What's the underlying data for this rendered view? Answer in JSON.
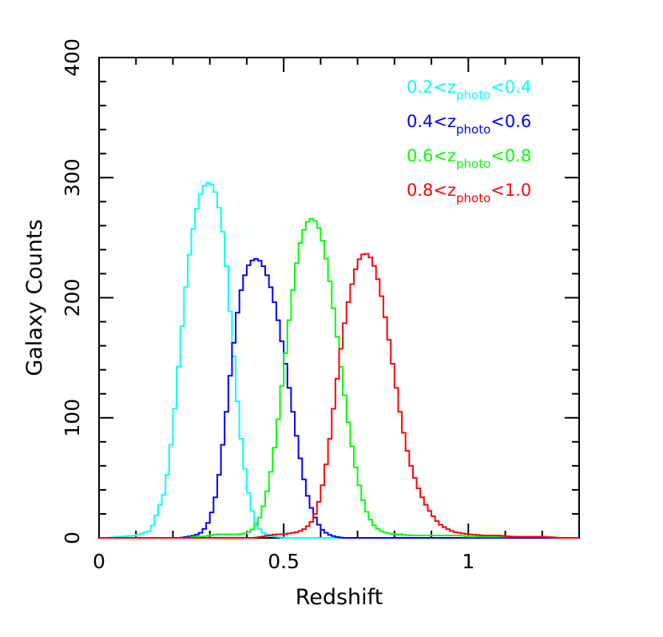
{
  "chart_data": {
    "type": "line",
    "title": "",
    "xlabel": "Redshift",
    "ylabel": "Galaxy Counts",
    "xlim": [
      0,
      1.3
    ],
    "ylim": [
      0,
      400
    ],
    "x_ticks": [
      0,
      0.5,
      1
    ],
    "x_tick_labels": [
      "0",
      "0.5",
      "1"
    ],
    "y_ticks": [
      0,
      100,
      200,
      300,
      400
    ],
    "y_tick_labels": [
      "0",
      "100",
      "200",
      "300",
      "400"
    ],
    "grid": false,
    "legend_position": "top-right",
    "x": [
      0.02,
      0.06,
      0.1,
      0.14,
      0.18,
      0.2,
      0.22,
      0.24,
      0.26,
      0.28,
      0.3,
      0.32,
      0.34,
      0.36,
      0.38,
      0.4,
      0.42,
      0.44,
      0.46,
      0.48,
      0.5,
      0.52,
      0.54,
      0.56,
      0.58,
      0.6,
      0.62,
      0.64,
      0.66,
      0.68,
      0.7,
      0.72,
      0.74,
      0.76,
      0.78,
      0.8,
      0.82,
      0.84,
      0.86,
      0.88,
      0.9,
      0.92,
      0.94,
      0.96,
      0.98,
      1.0,
      1.04,
      1.08,
      1.12,
      1.16,
      1.2,
      1.25,
      1.3
    ],
    "series": [
      {
        "label_parts": [
          "0.2<z",
          "photo",
          "<0.4"
        ],
        "color": "#00ffff",
        "values": [
          0,
          1,
          2,
          6,
          40,
          90,
          160,
          225,
          268,
          292,
          297,
          285,
          245,
          170,
          95,
          45,
          15,
          5,
          2,
          1,
          0,
          0,
          0,
          0,
          0,
          0,
          0,
          0,
          0,
          0,
          0,
          0,
          0,
          0,
          0,
          0,
          0,
          0,
          0,
          0,
          0,
          0,
          0,
          0,
          0,
          0,
          0,
          0,
          0,
          0,
          0,
          0,
          0
        ]
      },
      {
        "label_parts": [
          "0.4<z",
          "photo",
          "<0.6"
        ],
        "color": "#0000ff",
        "values": [
          0,
          0,
          0,
          0,
          0,
          0,
          0,
          1,
          2,
          5,
          15,
          40,
          90,
          150,
          200,
          225,
          233,
          230,
          215,
          190,
          155,
          115,
          75,
          40,
          20,
          8,
          3,
          1,
          0,
          0,
          0,
          0,
          0,
          0,
          0,
          0,
          0,
          0,
          0,
          0,
          0,
          0,
          0,
          0,
          0,
          0,
          0,
          0,
          0,
          0,
          0,
          0,
          0
        ]
      },
      {
        "label_parts": [
          "0.6<z",
          "photo",
          "<0.8"
        ],
        "color": "#00ff00",
        "values": [
          0,
          0,
          0,
          0,
          0,
          0,
          0,
          0,
          1,
          1,
          2,
          3,
          3,
          3,
          3,
          4,
          8,
          20,
          45,
          85,
          140,
          195,
          240,
          262,
          267,
          255,
          225,
          180,
          130,
          85,
          50,
          25,
          12,
          6,
          4,
          3,
          3,
          2,
          2,
          2,
          2,
          2,
          2,
          2,
          2,
          1,
          1,
          1,
          1,
          1,
          1,
          0,
          0
        ]
      },
      {
        "label_parts": [
          "0.8<z",
          "photo",
          "<1.0"
        ],
        "color": "#ff0000",
        "values": [
          0,
          0,
          0,
          0,
          0,
          0,
          0,
          0,
          0,
          0,
          0,
          0,
          0,
          0,
          0,
          0,
          0,
          1,
          2,
          3,
          3,
          4,
          5,
          8,
          15,
          35,
          70,
          120,
          170,
          205,
          230,
          238,
          232,
          210,
          175,
          135,
          95,
          65,
          45,
          30,
          20,
          12,
          8,
          5,
          4,
          3,
          2,
          2,
          1,
          1,
          1,
          0,
          0
        ]
      }
    ]
  }
}
